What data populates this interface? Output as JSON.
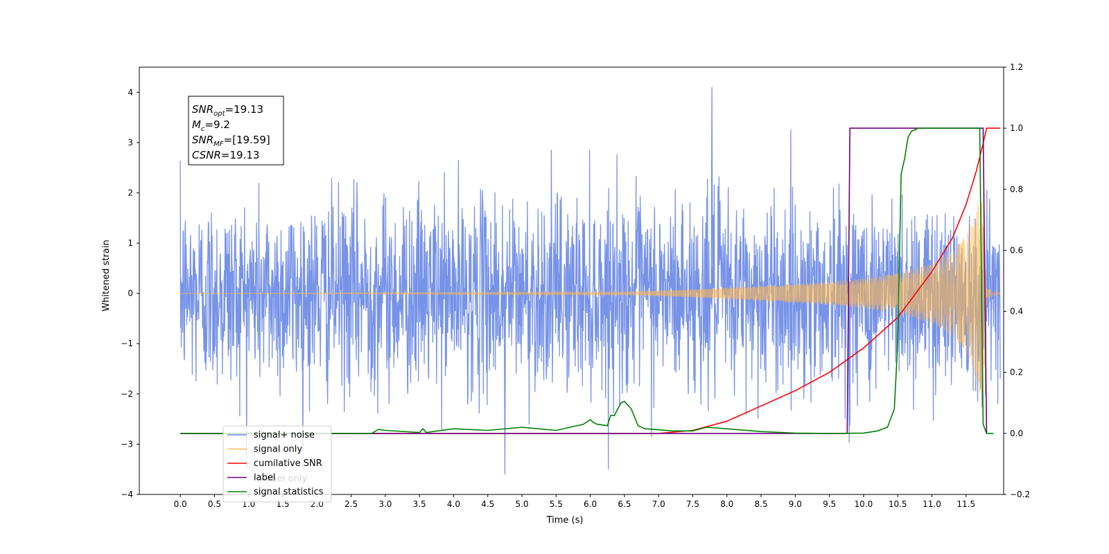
{
  "chart_data": {
    "type": "line",
    "xlabel": "Time (s)",
    "ylabel": "Whitened strain",
    "xlim": [
      -0.6,
      12.05
    ],
    "ylim": [
      -4,
      4.5
    ],
    "y2lim": [
      -0.2,
      1.2
    ],
    "x_ticks": [
      "0.0",
      "0.5",
      "1.0",
      "1.5",
      "2.0",
      "2.5",
      "3.0",
      "3.5",
      "4.0",
      "4.5",
      "5.0",
      "5.5",
      "6.0",
      "6.5",
      "7.0",
      "7.5",
      "8.0",
      "8.5",
      "9.0",
      "9.5",
      "10.0",
      "10.5",
      "11.0",
      "11.5"
    ],
    "y_ticks": [
      "4",
      "3",
      "2",
      "1",
      "0",
      "−1",
      "−2",
      "−3",
      "−4"
    ],
    "y2_ticks": [
      "1.2",
      "1.0",
      "0.8",
      "0.6",
      "0.4",
      "0.2",
      "0.0",
      "−0.2"
    ],
    "grid": false,
    "legend_position": "lower-left",
    "annotation": {
      "lines": [
        {
          "name": "SNR",
          "sub": "opt",
          "value": "=19.13"
        },
        {
          "name": "M",
          "sub": "c",
          "value": "=9.2"
        },
        {
          "name": "SNR",
          "sub": "MF",
          "value": "=[19.59]"
        },
        {
          "name": "CSNR",
          "sub": "",
          "value": "=19.13"
        }
      ]
    },
    "series": [
      {
        "name": "signal+ noise",
        "color": "#6b8ae6",
        "axis": "left",
        "kind": "noise",
        "t_start": 0.0,
        "t_end": 12.0,
        "sigma": 1.0,
        "min": -3.6,
        "max": 4.1
      },
      {
        "name": "signal only",
        "color": "#ffb84d",
        "axis": "left",
        "kind": "chirp",
        "t_start": 0.0,
        "t_end": 12.0,
        "t_merge": 11.75,
        "envelope_t": [
          0,
          6.5,
          7.5,
          8.5,
          9.5,
          10.0,
          10.5,
          11.0,
          11.3,
          11.5,
          11.6,
          11.7,
          11.75,
          11.8,
          12.0
        ],
        "envelope_a": [
          0.0,
          0.03,
          0.08,
          0.15,
          0.23,
          0.3,
          0.4,
          0.6,
          0.85,
          1.15,
          1.5,
          2.0,
          2.4,
          0.1,
          0.0
        ]
      },
      {
        "name": "cumilative SNR",
        "color": "#ff0000",
        "axis": "right",
        "x": [
          0,
          7.0,
          7.5,
          8.0,
          8.5,
          9.0,
          9.5,
          10.0,
          10.5,
          11.0,
          11.3,
          11.5,
          11.65,
          11.75,
          11.8,
          12.0
        ],
        "y": [
          0,
          0.0,
          0.01,
          0.04,
          0.09,
          0.14,
          0.2,
          0.28,
          0.38,
          0.53,
          0.64,
          0.75,
          0.86,
          0.95,
          1.0,
          1.0
        ]
      },
      {
        "name": "label",
        "color": "#6a0080",
        "axis": "right",
        "x": [
          0,
          9.76,
          9.8,
          11.75,
          11.8
        ],
        "y": [
          0,
          0.0,
          1.0,
          1.0,
          0.0
        ]
      },
      {
        "name": "signal statistics",
        "color": "#008000",
        "axis": "right",
        "x": [
          0,
          2.8,
          2.9,
          3.0,
          3.5,
          3.55,
          3.6,
          4.0,
          4.5,
          5.0,
          5.5,
          5.9,
          6.0,
          6.05,
          6.1,
          6.25,
          6.3,
          6.35,
          6.45,
          6.5,
          6.6,
          6.7,
          6.8,
          7.0,
          7.2,
          7.5,
          7.7,
          8.0,
          8.5,
          9.0,
          9.5,
          10.0,
          10.2,
          10.35,
          10.45,
          10.5,
          10.55,
          10.6,
          10.65,
          10.7,
          10.8,
          11.0,
          11.5,
          11.7,
          11.75,
          11.8,
          11.9
        ],
        "y": [
          0,
          0.0,
          0.013,
          0.01,
          0.003,
          0.015,
          0.003,
          0.015,
          0.01,
          0.02,
          0.01,
          0.03,
          0.045,
          0.035,
          0.03,
          0.025,
          0.06,
          0.058,
          0.1,
          0.105,
          0.08,
          0.025,
          0.015,
          0.012,
          0.008,
          0.008,
          0.02,
          0.015,
          0.006,
          0.001,
          0.0,
          0.001,
          0.008,
          0.02,
          0.08,
          0.3,
          0.85,
          0.9,
          0.97,
          0.99,
          1.0,
          1.0,
          1.0,
          1.0,
          0.03,
          0.0,
          0.0
        ]
      },
      {
        "name": "label only",
        "color": "#aaaaaa",
        "axis": "right",
        "hidden": true
      }
    ]
  }
}
